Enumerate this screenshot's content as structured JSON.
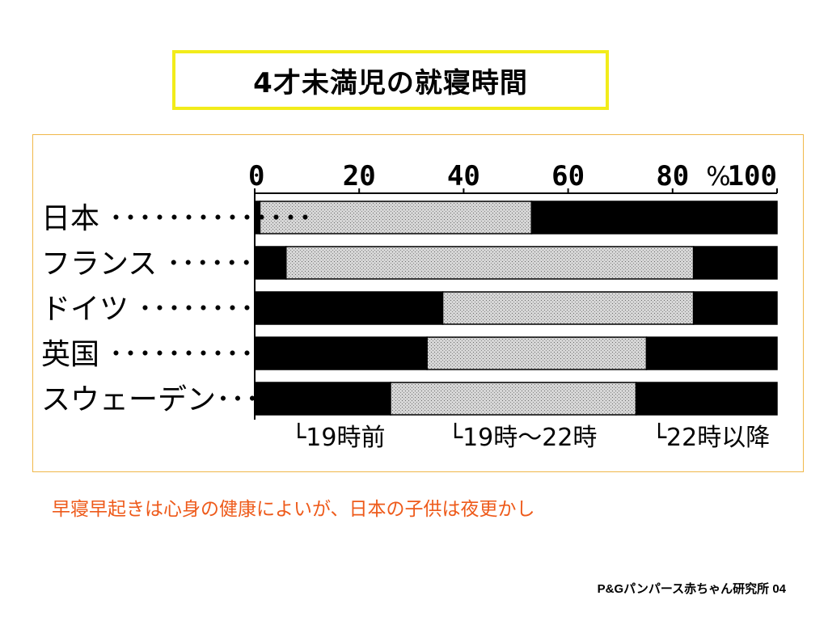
{
  "title": "4才未満児の就寝時間",
  "note": "早寝早起きは心身の健康によいが、日本の子供は夜更かし",
  "source": "P&Gパンパース赤ちゃん研究所 04",
  "colors": {
    "title_border": "#f2ec1a",
    "frame_border": "#f0b84a",
    "note": "#ee5a1a",
    "black_segment": "#000000",
    "dotted_segment": "#cccccc"
  },
  "chart_data": {
    "type": "bar",
    "orientation": "horizontal",
    "stacked": true,
    "percent_axis_symbol": "%",
    "xlim": [
      0,
      100
    ],
    "x_ticks": [
      0,
      20,
      40,
      60,
      80,
      100
    ],
    "categories": [
      "日本",
      "フランス",
      "ドイツ",
      "英国",
      "スウェーデン"
    ],
    "category_labels": [
      "日本 ･･････････････",
      "フランス ････････",
      "ドイツ ･･･････････",
      "英国 ･･････････････",
      "スウェーデン･･･"
    ],
    "series": [
      {
        "name": "19時前",
        "label": "└19時前",
        "fill": "black",
        "values": [
          1,
          6,
          36,
          33,
          26
        ]
      },
      {
        "name": "19時～22時",
        "label": "└19時～22時",
        "fill": "dotted",
        "values": [
          52,
          78,
          48,
          42,
          47
        ]
      },
      {
        "name": "22時以降",
        "label": "└22時以降",
        "fill": "black",
        "values": [
          47,
          16,
          16,
          25,
          27
        ]
      }
    ],
    "legend_placement": "bottom"
  }
}
